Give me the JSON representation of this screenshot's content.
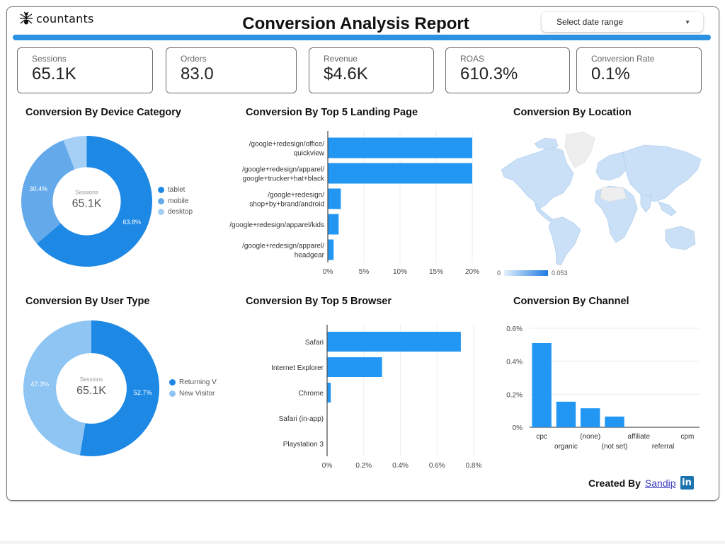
{
  "header": {
    "logo_text": "countants",
    "title": "Conversion Analysis Report",
    "date_range_placeholder": "Select date range"
  },
  "colors": {
    "primary": "#2b91e3",
    "bar": "#2196f3",
    "dark_blue": "#1e88e5",
    "mid_blue": "#64aaeb",
    "light_blue": "#a6cff5",
    "map_fill": "#c9e0f7",
    "map_empty": "#eeeeee"
  },
  "kpis": [
    {
      "label": "Sessions",
      "value": "65.1K"
    },
    {
      "label": "Orders",
      "value": "83.0"
    },
    {
      "label": "Revenue",
      "value": "$4.6K"
    },
    {
      "label": "ROAS",
      "value": "610.3%"
    },
    {
      "label": "Conversion Rate",
      "value": "0.1%"
    }
  ],
  "chart_data": [
    {
      "id": "device",
      "type": "pie",
      "title": "Conversion By Device Category",
      "center_label": "Sessions",
      "center_value": "65.1K",
      "categories": [
        "tablet",
        "mobile",
        "desktop"
      ],
      "values": [
        63.8,
        30.4,
        5.8
      ],
      "value_labels": [
        "63.8%",
        "30.4%",
        ""
      ],
      "legend": "right"
    },
    {
      "id": "landing",
      "type": "bar",
      "orientation": "horizontal",
      "title": "Conversion By Top 5 Landing Page",
      "categories": [
        [
          "/google+redesign/office/",
          "quickview"
        ],
        [
          "/google+redesign/apparel/",
          "google+trucker+hat+black"
        ],
        [
          "/google+redesign/",
          "shop+by+brand/android"
        ],
        [
          "/google+redesign/apparel/kids"
        ],
        [
          "/google+redesign/apparel/",
          "headgear"
        ]
      ],
      "values": [
        20.0,
        20.0,
        1.8,
        1.5,
        0.8
      ],
      "xlim": [
        0,
        20
      ],
      "ticks": [
        "0%",
        "5%",
        "10%",
        "15%",
        "20%"
      ],
      "grid": true
    },
    {
      "id": "location",
      "type": "heatmap",
      "title": "Conversion By Location",
      "scale_min_label": "0",
      "scale_max_label": "0.053",
      "range": [
        0,
        0.053
      ]
    },
    {
      "id": "usertype",
      "type": "pie",
      "title": "Conversion By User Type",
      "center_label": "Sessions",
      "center_value": "65.1K",
      "categories": [
        "Returning V",
        "New Visitor"
      ],
      "values": [
        52.7,
        47.3
      ],
      "value_labels": [
        "52.7%",
        "47.3%"
      ],
      "legend": "right"
    },
    {
      "id": "browser",
      "type": "bar",
      "orientation": "horizontal",
      "title": "Conversion By Top 5 Browser",
      "categories": [
        [
          "Safari"
        ],
        [
          "Internet Explorer"
        ],
        [
          "Chrome"
        ],
        [
          "Safari (in-app)"
        ],
        [
          "Playstation 3"
        ]
      ],
      "values": [
        0.73,
        0.3,
        0.02,
        0,
        0
      ],
      "xlim": [
        0,
        0.8
      ],
      "ticks": [
        "0%",
        "0.2%",
        "0.4%",
        "0.6%",
        "0.8%"
      ],
      "grid": true
    },
    {
      "id": "channel",
      "type": "bar",
      "orientation": "vertical",
      "title": "Conversion By Channel",
      "categories": [
        "cpc",
        "organic",
        "(none)",
        "(not set)",
        "affiliate",
        "referral",
        "cpm"
      ],
      "values": [
        0.51,
        0.155,
        0.115,
        0.065,
        0,
        0,
        0
      ],
      "ylim": [
        0,
        0.6
      ],
      "ticks": [
        "0%",
        "0.2%",
        "0.4%",
        "0.6%"
      ],
      "grid": true
    }
  ],
  "footer": {
    "created_by": "Created By",
    "author": "Sandip",
    "linkedin_icon": "in"
  }
}
